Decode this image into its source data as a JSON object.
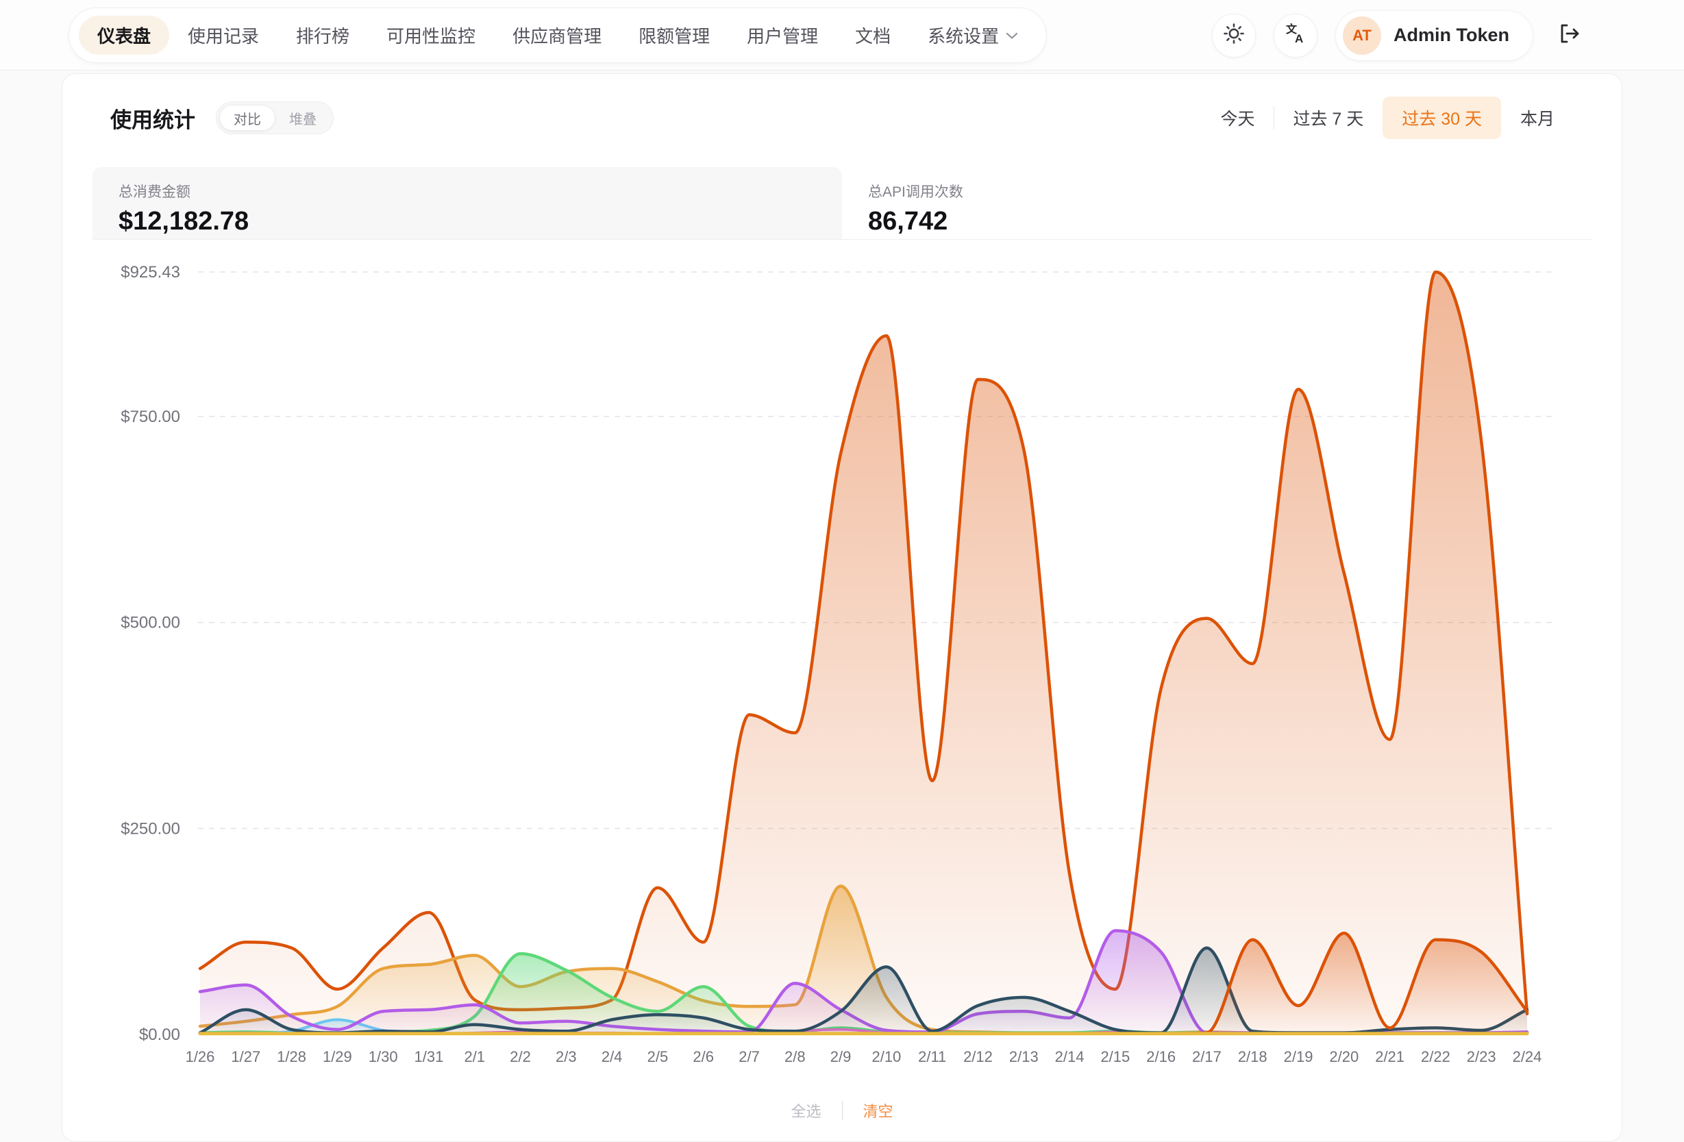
{
  "nav": {
    "items": [
      {
        "label": "仪表盘",
        "active": true
      },
      {
        "label": "使用记录"
      },
      {
        "label": "排行榜"
      },
      {
        "label": "可用性监控"
      },
      {
        "label": "供应商管理"
      },
      {
        "label": "限额管理"
      },
      {
        "label": "用户管理"
      },
      {
        "label": "文档"
      },
      {
        "label": "系统设置",
        "has_dropdown": true
      }
    ]
  },
  "header_right": {
    "avatar_initials": "AT",
    "username": "Admin Token"
  },
  "panel": {
    "title": "使用统计",
    "modes": [
      "对比",
      "堆叠"
    ],
    "mode_selected": "对比",
    "ranges": [
      "今天",
      "过去 7 天",
      "过去 30 天",
      "本月"
    ],
    "range_selected": "过去 30 天"
  },
  "stats": {
    "spend_label": "总消费金额",
    "spend_value": "$12,182.78",
    "calls_label": "总API调用次数",
    "calls_value": "86,742"
  },
  "footer": {
    "select_all": "全选",
    "clear": "清空"
  },
  "colors": {
    "accent": "#ea7317",
    "accent_bg": "#fdeedd",
    "grid": "#e4e4e8",
    "axis_text": "#71717a"
  },
  "chart_data": {
    "type": "area",
    "smooth": true,
    "grid": "dashed-horizontal",
    "legend_position": "hidden",
    "ymax": 925.43,
    "y_ticks": [
      {
        "label": "$0.00",
        "value": 0
      },
      {
        "label": "$250.00",
        "value": 250
      },
      {
        "label": "$500.00",
        "value": 500
      },
      {
        "label": "$750.00",
        "value": 750
      },
      {
        "label": "$925.43",
        "value": 925.43
      }
    ],
    "x": [
      "1/26",
      "1/27",
      "1/28",
      "1/29",
      "1/30",
      "1/31",
      "2/1",
      "2/2",
      "2/3",
      "2/4",
      "2/5",
      "2/6",
      "2/7",
      "2/8",
      "2/9",
      "2/10",
      "2/11",
      "2/12",
      "2/13",
      "2/14",
      "2/15",
      "2/16",
      "2/17",
      "2/18",
      "2/19",
      "2/20",
      "2/21",
      "2/22",
      "2/23",
      "2/24"
    ],
    "series": [
      {
        "name": "spend-main-orange",
        "color": "#dc5206",
        "values": [
          80,
          112,
          105,
          55,
          105,
          148,
          42,
          30,
          32,
          42,
          178,
          112,
          388,
          366,
          705,
          848,
          308,
          795,
          710,
          195,
          55,
          420,
          505,
          450,
          783,
          560,
          358,
          925.43,
          720,
          25
        ]
      },
      {
        "name": "spend-amber",
        "color": "#e8a23c",
        "values": [
          10,
          16,
          24,
          34,
          80,
          85,
          96,
          58,
          76,
          80,
          64,
          41,
          34,
          36,
          180,
          45,
          6,
          3,
          2,
          2,
          2,
          2,
          3,
          2,
          2,
          2,
          2,
          2,
          2,
          2
        ]
      },
      {
        "name": "spend-green",
        "color": "#5ed878",
        "values": [
          2,
          3,
          2,
          2,
          3,
          5,
          22,
          98,
          78,
          45,
          28,
          58,
          10,
          3,
          8,
          3,
          2,
          2,
          2,
          2,
          4,
          2,
          2,
          2,
          2,
          2,
          2,
          2,
          2,
          2
        ]
      },
      {
        "name": "spend-sky",
        "color": "#6bc6f0",
        "values": [
          1,
          1,
          4,
          18,
          5,
          1,
          1,
          1,
          1,
          1,
          1,
          1,
          1,
          1,
          1,
          1,
          1,
          1,
          1,
          1,
          1,
          1,
          1,
          1,
          1,
          1,
          1,
          1,
          1,
          1
        ]
      },
      {
        "name": "spend-pink",
        "color": "#e06bc0",
        "values": [
          1,
          2,
          1,
          1,
          1,
          1,
          2,
          3,
          2,
          2,
          1,
          1,
          1,
          4,
          6,
          2,
          1,
          1,
          1,
          1,
          3,
          2,
          1,
          1,
          1,
          1,
          1,
          1,
          1,
          1
        ]
      },
      {
        "name": "spend-purple",
        "color": "#b25ce8",
        "values": [
          52,
          60,
          22,
          6,
          28,
          30,
          36,
          14,
          16,
          10,
          6,
          4,
          3,
          62,
          30,
          5,
          3,
          25,
          28,
          20,
          126,
          100,
          2,
          2,
          2,
          2,
          2,
          2,
          2,
          3
        ]
      },
      {
        "name": "spend-slate",
        "color": "#2e4f63",
        "values": [
          2,
          30,
          6,
          2,
          4,
          3,
          12,
          6,
          4,
          18,
          24,
          20,
          6,
          4,
          28,
          82,
          4,
          35,
          45,
          28,
          6,
          2,
          105,
          4,
          2,
          2,
          6,
          8,
          5,
          30
        ]
      },
      {
        "name": "spend-orange-2",
        "color": "#dc5206",
        "values": [
          1,
          1,
          1,
          1,
          1,
          1,
          1,
          1,
          1,
          1,
          1,
          1,
          1,
          1,
          1,
          1,
          1,
          1,
          1,
          1,
          1,
          1,
          2,
          115,
          35,
          123,
          8,
          115,
          100,
          28
        ]
      },
      {
        "name": "spend-gold-baseline",
        "color": "#e9bb3d",
        "values": [
          1,
          1,
          1,
          1,
          1,
          1,
          1,
          1,
          1,
          1,
          1,
          1,
          1,
          1,
          1,
          1,
          1,
          1,
          1,
          1,
          1,
          1,
          1,
          1,
          1,
          1,
          1,
          1,
          1,
          1
        ]
      }
    ]
  }
}
